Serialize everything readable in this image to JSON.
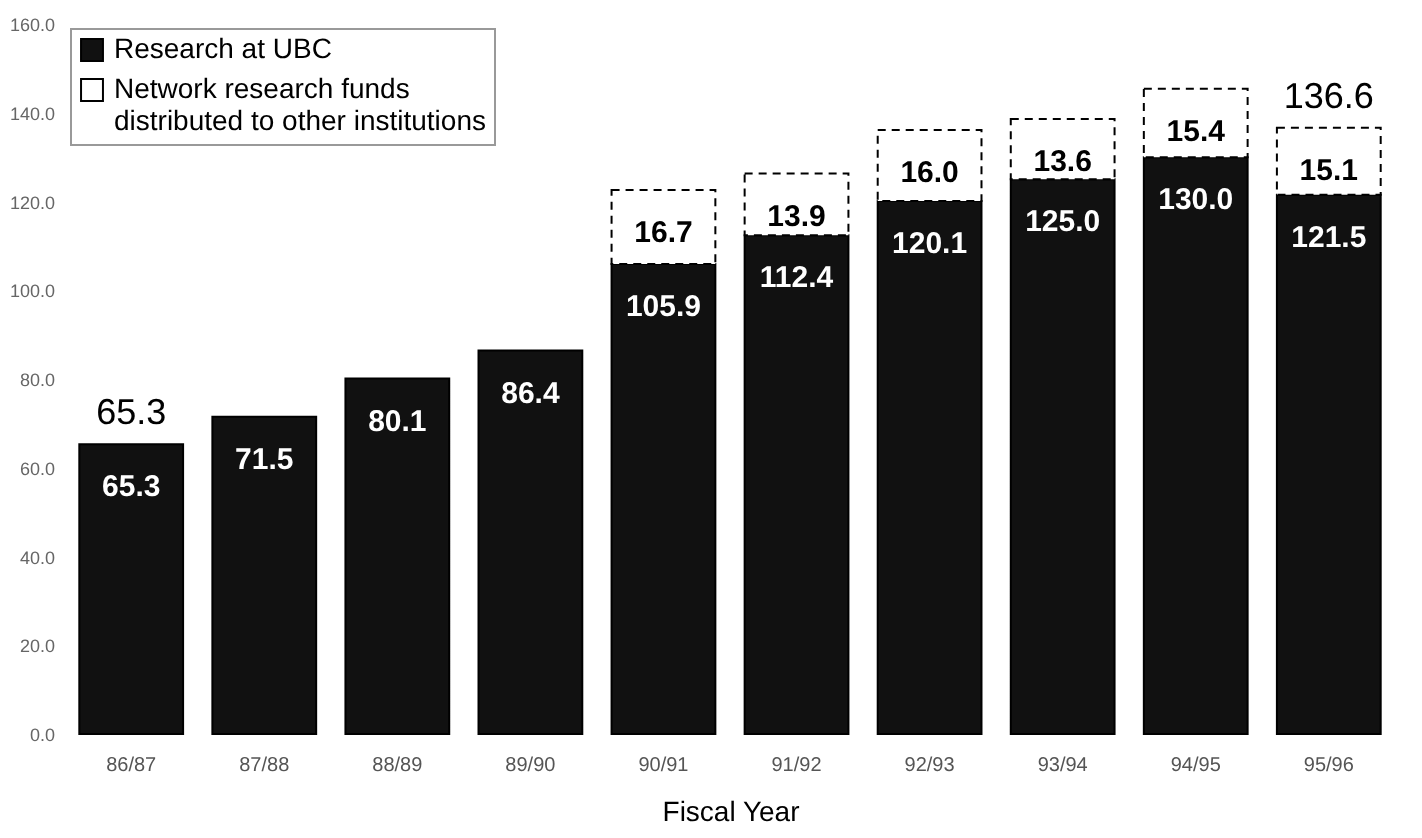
{
  "chart_data": {
    "type": "bar",
    "stacked": true,
    "xlabel": "Fiscal Year",
    "categories": [
      "86/87",
      "87/88",
      "88/89",
      "89/90",
      "90/91",
      "91/92",
      "92/93",
      "93/94",
      "94/95",
      "95/96"
    ],
    "series": [
      {
        "name": "Research at UBC",
        "color": "#111111",
        "values": [
          65.3,
          71.5,
          80.1,
          86.4,
          105.9,
          112.4,
          120.1,
          125.0,
          130.0,
          121.5
        ],
        "value_labels": [
          "65.3",
          "71.5",
          "80.1",
          "86.4",
          "105.9",
          "112.4",
          "120.1",
          "125.0",
          "130.0",
          "121.5"
        ]
      },
      {
        "name": "Network research funds distributed to other institutions",
        "color": "#ffffff",
        "values": [
          null,
          null,
          null,
          null,
          16.7,
          13.9,
          16.0,
          13.6,
          15.4,
          15.1
        ],
        "value_labels": [
          null,
          null,
          null,
          null,
          "16.7",
          "13.9",
          "16.0",
          "13.6",
          "15.4",
          "15.1"
        ]
      }
    ],
    "totals": [
      "65.3",
      null,
      null,
      null,
      null,
      null,
      null,
      null,
      null,
      "136.6"
    ],
    "ylim": [
      0,
      160
    ],
    "yticks": [
      {
        "value": 0,
        "label": "0.0"
      },
      {
        "value": 20,
        "label": "20.0"
      },
      {
        "value": 40,
        "label": "40.0"
      },
      {
        "value": 60,
        "label": "60.0"
      },
      {
        "value": 80,
        "label": "80.0"
      },
      {
        "value": 100,
        "label": "100.0"
      },
      {
        "value": 120,
        "label": "120.0"
      },
      {
        "value": 140,
        "label": "140.0"
      },
      {
        "value": 160,
        "label": "160.0"
      }
    ],
    "grid": false,
    "legend": "top left"
  }
}
